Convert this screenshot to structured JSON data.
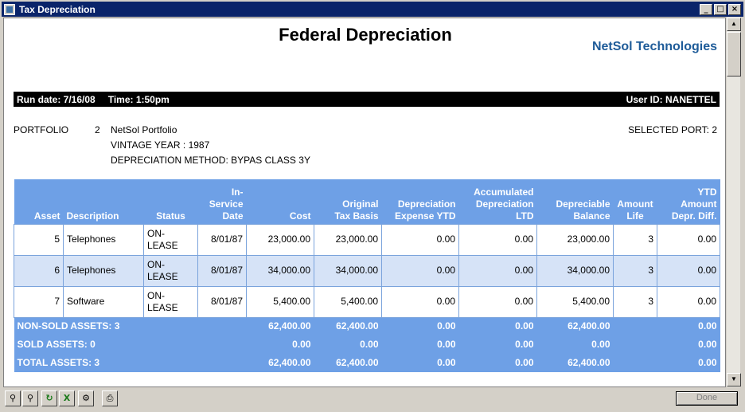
{
  "window": {
    "title": "Tax Depreciation"
  },
  "report": {
    "title": "Federal Depreciation",
    "brand": "NetSol Technologies",
    "run_date": "Run date: 7/16/08",
    "time": "Time: 1:50pm",
    "user_id": "User ID: NANETTEL"
  },
  "portfolio": {
    "label": "PORTFOLIO",
    "number": "2",
    "name": "NetSol Portfolio",
    "vintage_year": "VINTAGE YEAR : 1987",
    "depreciation_method": "DEPRECIATION METHOD: BYPAS CLASS 3Y",
    "selected_port": "SELECTED PORT: 2"
  },
  "table": {
    "headers": {
      "asset": "Asset",
      "description": "Description",
      "status": "Status",
      "in_service_1": "In-",
      "in_service_2": "Service",
      "in_service_3": "Date",
      "cost": "Cost",
      "orig_1": "Original",
      "orig_2": "Tax Basis",
      "dep_1": "Depreciation",
      "dep_2": "Expense YTD",
      "acc_1": "Accumulated",
      "acc_2": "Depreciation",
      "acc_3": "LTD",
      "db_1": "Depreciable",
      "db_2": "Balance",
      "al_1": "Amount",
      "al_2": "Life",
      "ytd_1": "YTD",
      "ytd_2": "Amount",
      "ytd_3": "Depr. Diff."
    },
    "rows": [
      {
        "asset": "5",
        "description": "Telephones",
        "status_1": "ON-",
        "status_2": "LEASE",
        "in_service": "8/01/87",
        "cost": "23,000.00",
        "original": "23,000.00",
        "dep_ytd": "0.00",
        "acc_ltd": "0.00",
        "balance": "23,000.00",
        "life": "3",
        "ytd_diff": "0.00"
      },
      {
        "asset": "6",
        "description": "Telephones",
        "status_1": "ON-",
        "status_2": "LEASE",
        "in_service": "8/01/87",
        "cost": "34,000.00",
        "original": "34,000.00",
        "dep_ytd": "0.00",
        "acc_ltd": "0.00",
        "balance": "34,000.00",
        "life": "3",
        "ytd_diff": "0.00"
      },
      {
        "asset": "7",
        "description": "Software",
        "status_1": "ON-",
        "status_2": "LEASE",
        "in_service": "8/01/87",
        "cost": "5,400.00",
        "original": "5,400.00",
        "dep_ytd": "0.00",
        "acc_ltd": "0.00",
        "balance": "5,400.00",
        "life": "3",
        "ytd_diff": "0.00"
      }
    ],
    "totals": [
      {
        "label": "NON-SOLD ASSETS:  3",
        "cost": "62,400.00",
        "original": "62,400.00",
        "dep_ytd": "0.00",
        "acc_ltd": "0.00",
        "balance": "62,400.00",
        "ytd_diff": "0.00"
      },
      {
        "label": "SOLD ASSETS:  0",
        "cost": "0.00",
        "original": "0.00",
        "dep_ytd": "0.00",
        "acc_ltd": "0.00",
        "balance": "0.00",
        "ytd_diff": "0.00"
      },
      {
        "label": "TOTAL ASSETS:  3",
        "cost": "62,400.00",
        "original": "62,400.00",
        "dep_ytd": "0.00",
        "acc_ltd": "0.00",
        "balance": "62,400.00",
        "ytd_diff": "0.00"
      }
    ]
  },
  "toolbar": {
    "icons": [
      "zoom-out-icon",
      "zoom-in-icon",
      "refresh-icon",
      "excel-export-icon",
      "print-setup-icon",
      "print-icon"
    ],
    "done_label": "Done"
  }
}
